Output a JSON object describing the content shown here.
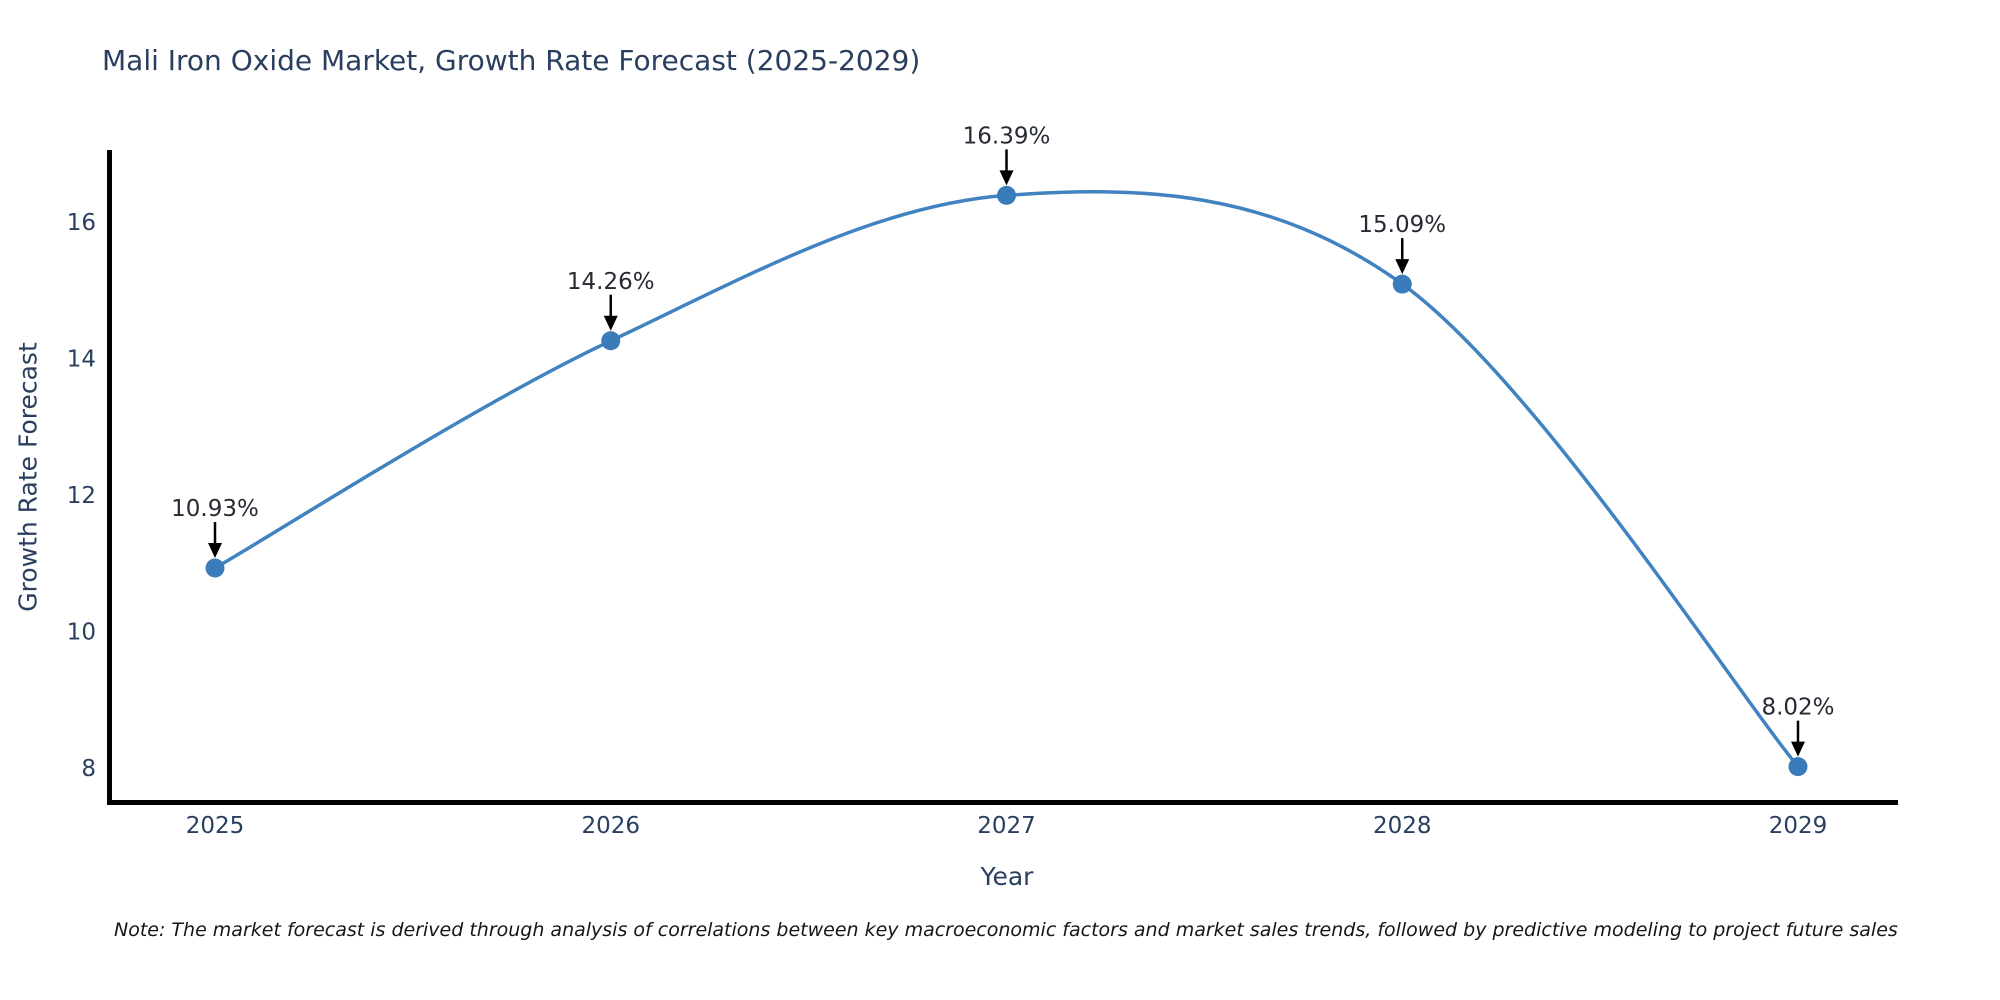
{
  "chart_data": {
    "type": "line",
    "line_shape": "spline",
    "title": "Mali Iron Oxide Market, Growth Rate Forecast (2025-2029)",
    "xlabel": "Year",
    "ylabel": "Growth Rate Forecast",
    "categories": [
      "2025",
      "2026",
      "2027",
      "2028",
      "2029"
    ],
    "series": [
      {
        "name": "Growth Rate Forecast",
        "values": [
          10.93,
          14.26,
          16.39,
          15.09,
          8.02
        ]
      }
    ],
    "point_labels": [
      "10.93%",
      "14.26%",
      "16.39%",
      "15.09%",
      "8.02%"
    ],
    "yticks": [
      8,
      10,
      12,
      14,
      16
    ],
    "ylim": [
      7.5,
      17.05
    ],
    "grid": false,
    "legend": false,
    "markers": true,
    "annotations": "arrow-labels-above-points",
    "note": "Note: The market forecast is derived through analysis of correlations between key macroeconomic factors and market sales trends, followed by predictive modeling to project future sales",
    "colors": {
      "line": "#4083c0",
      "marker": "#3a7cba",
      "axis": "#000000",
      "arrow": "#000000",
      "tick_text": "#2a3f5f",
      "title_text": "#2a3f5f",
      "annotation_text": "#262b33",
      "note_text": "#161616",
      "background": "#ffffff"
    }
  }
}
